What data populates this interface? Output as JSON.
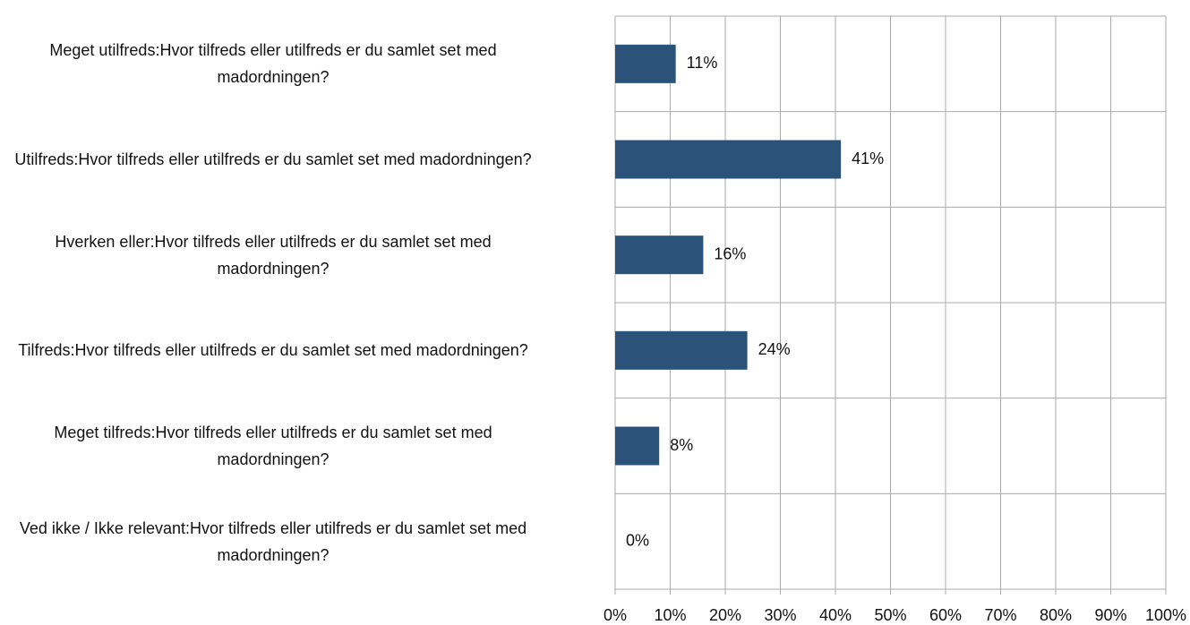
{
  "chart_data": {
    "type": "hbar",
    "categories": [
      "Meget utilfreds:Hvor tilfreds eller utilfreds er du samlet set med madordningen?",
      "Utilfreds:Hvor tilfreds eller utilfreds er du samlet set med madordningen?",
      "Hverken eller:Hvor tilfreds eller utilfreds er du samlet set med madordningen?",
      "Tilfreds:Hvor tilfreds eller utilfreds er du samlet set med madordningen?",
      "Meget tilfreds:Hvor tilfreds eller utilfreds er du samlet set med madordningen?",
      "Ved ikke / Ikke relevant:Hvor tilfreds eller utilfreds er du samlet set med madordningen?"
    ],
    "values": [
      11,
      41,
      16,
      24,
      8,
      0
    ],
    "value_labels": [
      "11%",
      "41%",
      "16%",
      "24%",
      "8%",
      "0%"
    ],
    "color": "#2b5278",
    "xlim": [
      0,
      100
    ],
    "xticks": [
      {
        "value": 0,
        "label": "0%"
      },
      {
        "value": 10,
        "label": "10%"
      },
      {
        "value": 20,
        "label": "20%"
      },
      {
        "value": 30,
        "label": "30%"
      },
      {
        "value": 40,
        "label": "40%"
      },
      {
        "value": 50,
        "label": "50%"
      },
      {
        "value": 60,
        "label": "60%"
      },
      {
        "value": 70,
        "label": "70%"
      },
      {
        "value": 80,
        "label": "80%"
      },
      {
        "value": 90,
        "label": "90%"
      },
      {
        "value": 100,
        "label": "100%"
      }
    ],
    "grid": true
  }
}
